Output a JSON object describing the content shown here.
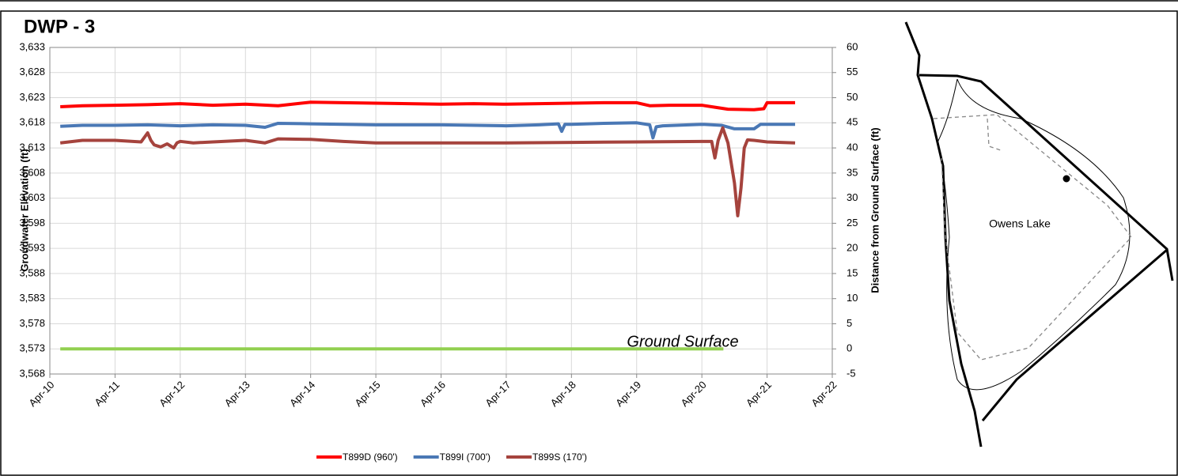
{
  "chart_data": {
    "type": "line",
    "title": "DWP - 3",
    "ylabel": "Groudwater Elevation (ft)",
    "y2label": "Distance from Ground Surface (ft)",
    "annotation": "Ground Surface",
    "xlim": [
      0,
      12
    ],
    "xticks": [
      {
        "value": 0,
        "label": "Apr-10"
      },
      {
        "value": 1,
        "label": "Apr-11"
      },
      {
        "value": 2,
        "label": "Apr-12"
      },
      {
        "value": 3,
        "label": "Apr-13"
      },
      {
        "value": 4,
        "label": "Apr-14"
      },
      {
        "value": 5,
        "label": "Apr-15"
      },
      {
        "value": 6,
        "label": "Apr-16"
      },
      {
        "value": 7,
        "label": "Apr-17"
      },
      {
        "value": 8,
        "label": "Apr-18"
      },
      {
        "value": 9,
        "label": "Apr-19"
      },
      {
        "value": 10,
        "label": "Apr-20"
      },
      {
        "value": 11,
        "label": "Apr-21"
      },
      {
        "value": 12,
        "label": "Apr-22"
      }
    ],
    "ylim": [
      3568,
      3633
    ],
    "yticks": [
      {
        "value": 3568,
        "label": "3,568"
      },
      {
        "value": 3573,
        "label": "3,573"
      },
      {
        "value": 3578,
        "label": "3,578"
      },
      {
        "value": 3583,
        "label": "3,583"
      },
      {
        "value": 3588,
        "label": "3,588"
      },
      {
        "value": 3593,
        "label": "3,593"
      },
      {
        "value": 3598,
        "label": "3,598"
      },
      {
        "value": 3603,
        "label": "3,603"
      },
      {
        "value": 3608,
        "label": "3,608"
      },
      {
        "value": 3613,
        "label": "3,613"
      },
      {
        "value": 3618,
        "label": "3,618"
      },
      {
        "value": 3623,
        "label": "3,623"
      },
      {
        "value": 3628,
        "label": "3,628"
      },
      {
        "value": 3633,
        "label": "3,633"
      }
    ],
    "y2lim": [
      -5,
      60
    ],
    "y2ticks": [
      -5,
      0,
      5,
      10,
      15,
      20,
      25,
      30,
      35,
      40,
      45,
      50,
      55,
      60
    ],
    "grid": true,
    "legend": "bottom",
    "series": [
      {
        "name": "T899D (960')",
        "color": "#ff0000",
        "x": [
          0.16,
          0.5,
          1,
          1.5,
          2,
          2.5,
          3,
          3.5,
          4,
          4.5,
          5,
          5.5,
          6,
          6.5,
          7,
          7.5,
          8,
          8.5,
          9,
          9.2,
          9.5,
          10,
          10.2,
          10.4,
          10.8,
          10.95,
          11,
          11.43
        ],
        "values": [
          3621.2,
          3621.4,
          3621.5,
          3621.6,
          3621.8,
          3621.5,
          3621.7,
          3621.4,
          3622.1,
          3622.0,
          3621.9,
          3621.8,
          3621.7,
          3621.8,
          3621.7,
          3621.8,
          3621.9,
          3622.0,
          3622.0,
          3621.4,
          3621.5,
          3621.5,
          3621.1,
          3620.7,
          3620.6,
          3620.8,
          3622.0,
          3622.0
        ]
      },
      {
        "name": "T899I (700')",
        "color": "#4a78b5",
        "x": [
          0.16,
          0.5,
          1,
          1.5,
          2,
          2.5,
          3,
          3.3,
          3.5,
          4,
          5,
          6,
          7,
          7.5,
          7.8,
          7.85,
          7.9,
          8,
          8.5,
          9.0,
          9.2,
          9.25,
          9.3,
          9.4,
          10,
          10.3,
          10.5,
          10.8,
          10.9,
          11.43
        ],
        "values": [
          3617.3,
          3617.5,
          3617.5,
          3617.6,
          3617.4,
          3617.6,
          3617.5,
          3617.1,
          3617.9,
          3617.8,
          3617.6,
          3617.6,
          3617.4,
          3617.6,
          3617.8,
          3616.3,
          3617.7,
          3617.7,
          3617.9,
          3618.0,
          3617.6,
          3615.0,
          3617.2,
          3617.4,
          3617.7,
          3617.5,
          3616.8,
          3616.8,
          3617.7,
          3617.7
        ]
      },
      {
        "name": "T899S (170')",
        "color": "#a5433d",
        "x": [
          0.16,
          0.5,
          1,
          1.4,
          1.5,
          1.55,
          1.6,
          1.7,
          1.8,
          1.9,
          1.95,
          2,
          2.2,
          2.5,
          3,
          3.3,
          3.5,
          4,
          4.5,
          5,
          6,
          7,
          8,
          9,
          10,
          10.15,
          10.2,
          10.25,
          10.32,
          10.4,
          10.5,
          10.55,
          10.6,
          10.65,
          10.7,
          10.8,
          11,
          11.43
        ],
        "values": [
          3614.0,
          3614.5,
          3614.5,
          3614.2,
          3616.0,
          3614.5,
          3613.6,
          3613.2,
          3613.8,
          3613.0,
          3614.0,
          3614.3,
          3614.0,
          3614.2,
          3614.5,
          3614.0,
          3614.8,
          3614.7,
          3614.3,
          3614.0,
          3614.0,
          3614.0,
          3614.1,
          3614.2,
          3614.3,
          3614.3,
          3611.0,
          3614.5,
          3617.0,
          3614.0,
          3606.0,
          3599.5,
          3605.0,
          3613.0,
          3614.6,
          3614.5,
          3614.2,
          3614.0
        ]
      },
      {
        "name": "Ground Surface",
        "color": "#92d050",
        "axis": "y2",
        "in_legend": false,
        "x": [
          0.16,
          10.33
        ],
        "values": [
          0,
          0
        ]
      }
    ]
  },
  "map_label": "Owens Lake"
}
